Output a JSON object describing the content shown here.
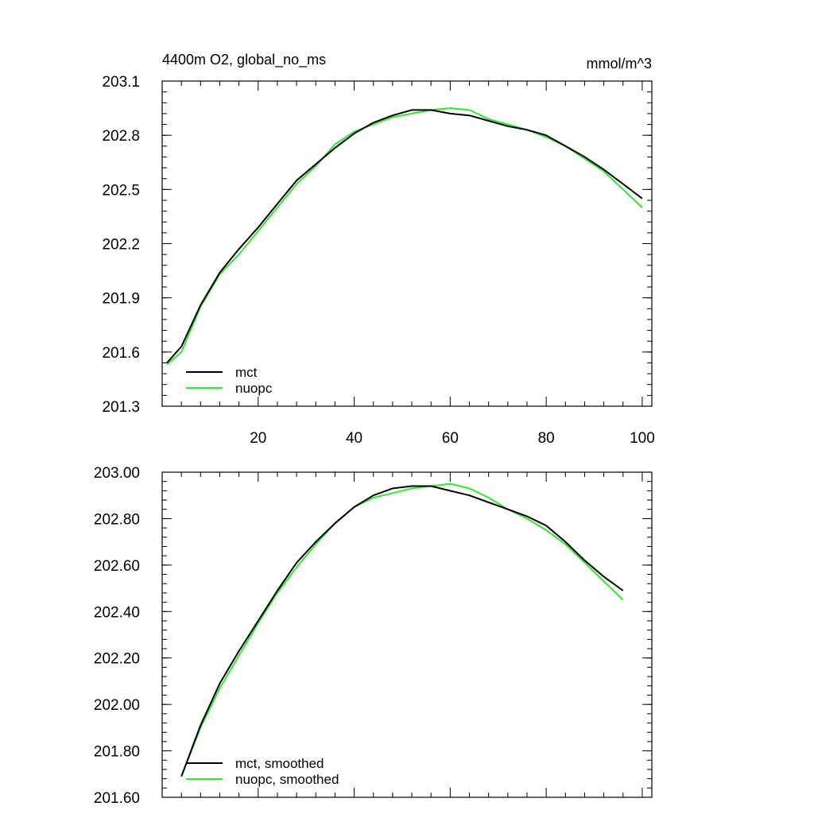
{
  "chart_data": [
    {
      "type": "line",
      "title": "4400m O2, global_no_ms",
      "units": "mmol/m^3",
      "xlim": [
        0,
        102
      ],
      "ylim": [
        201.3,
        203.1
      ],
      "xticks": [
        20,
        40,
        60,
        80,
        100
      ],
      "xtick_labels": [
        "20",
        "40",
        "60",
        "80",
        "100"
      ],
      "yticks": [
        201.3,
        201.6,
        201.9,
        202.2,
        202.5,
        202.8,
        203.1
      ],
      "ytick_labels": [
        "201.3",
        "201.6",
        "201.9",
        "202.2",
        "202.5",
        "202.8",
        "203.1"
      ],
      "legend_location": "lower-left",
      "x": [
        1,
        4,
        8,
        12,
        16,
        20,
        24,
        28,
        32,
        36,
        40,
        44,
        48,
        52,
        56,
        60,
        64,
        68,
        72,
        76,
        80,
        84,
        88,
        92,
        96,
        100
      ],
      "series": [
        {
          "name": "mct",
          "color": "#000000",
          "values": [
            201.54,
            201.63,
            201.86,
            202.04,
            202.17,
            202.29,
            202.42,
            202.55,
            202.64,
            202.73,
            202.81,
            202.87,
            202.91,
            202.94,
            202.94,
            202.92,
            202.91,
            202.88,
            202.85,
            202.83,
            202.8,
            202.74,
            202.68,
            202.61,
            202.53,
            202.45
          ]
        },
        {
          "name": "nuopc",
          "color": "#33e633",
          "values": [
            201.53,
            201.6,
            201.85,
            202.03,
            202.14,
            202.27,
            202.4,
            202.53,
            202.63,
            202.75,
            202.82,
            202.86,
            202.9,
            202.92,
            202.94,
            202.95,
            202.94,
            202.89,
            202.86,
            202.83,
            202.79,
            202.74,
            202.67,
            202.6,
            202.5,
            202.4
          ]
        }
      ]
    },
    {
      "type": "line",
      "xlim": [
        0,
        102
      ],
      "ylim": [
        201.6,
        203.0
      ],
      "xticks": [
        20,
        40,
        60,
        80,
        100
      ],
      "yticks": [
        201.6,
        201.8,
        202.0,
        202.2,
        202.4,
        202.6,
        202.8,
        203.0
      ],
      "ytick_labels": [
        "201.60",
        "201.80",
        "202.00",
        "202.20",
        "202.40",
        "202.60",
        "202.80",
        "203.00"
      ],
      "legend_location": "lower-left",
      "x": [
        4,
        8,
        12,
        16,
        20,
        24,
        28,
        32,
        36,
        40,
        44,
        48,
        52,
        56,
        60,
        64,
        68,
        72,
        76,
        80,
        84,
        88,
        92,
        96
      ],
      "series": [
        {
          "name": "mct, smoothed",
          "color": "#000000",
          "values": [
            201.69,
            201.91,
            202.09,
            202.23,
            202.36,
            202.49,
            202.61,
            202.7,
            202.78,
            202.85,
            202.9,
            202.93,
            202.94,
            202.94,
            202.92,
            202.9,
            202.87,
            202.84,
            202.81,
            202.77,
            202.7,
            202.62,
            202.55,
            202.49
          ]
        },
        {
          "name": "nuopc, smoothed",
          "color": "#33e633",
          "values": [
            201.69,
            201.9,
            202.07,
            202.21,
            202.35,
            202.48,
            202.59,
            202.69,
            202.78,
            202.85,
            202.89,
            202.91,
            202.93,
            202.94,
            202.95,
            202.93,
            202.89,
            202.84,
            202.8,
            202.75,
            202.69,
            202.61,
            202.53,
            202.45
          ]
        }
      ]
    }
  ]
}
